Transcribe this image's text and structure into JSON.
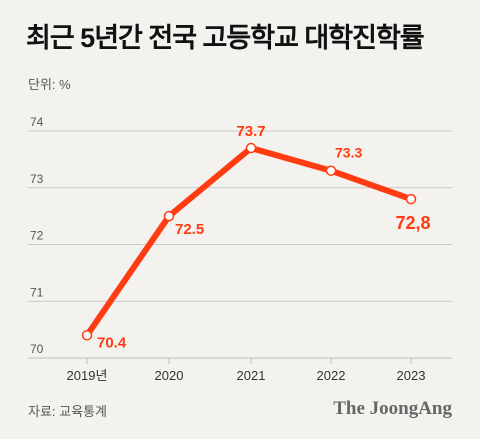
{
  "title": "최근 5년간 전국 고등학교 대학진학률",
  "unit_label": "단위: %",
  "source": "자료: 교육통계",
  "brand": "The JoongAng",
  "colors": {
    "background": "#f4f2ee",
    "line": "#ff3b12",
    "label": "#ff3b12",
    "grid": "#bdbdbd",
    "axis_text": "#555555"
  },
  "chart_data": {
    "type": "line",
    "categories": [
      "2019년",
      "2020",
      "2021",
      "2022",
      "2023"
    ],
    "series": [
      {
        "values": [
          70.4,
          72.5,
          73.7,
          73.3,
          72.8
        ]
      }
    ],
    "data_labels": [
      "70.4",
      "72.5",
      "73.7",
      "73.3",
      "72,8"
    ],
    "y_ticks": [
      70,
      71,
      72,
      73,
      74
    ],
    "ylim": [
      70,
      74
    ],
    "grid": "horizontal"
  }
}
